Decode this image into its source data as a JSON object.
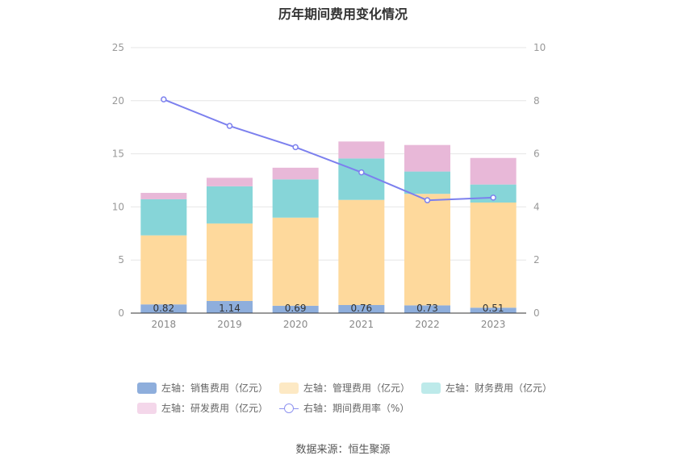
{
  "title": "历年期间费用变化情况",
  "source": "数据来源：恒生聚源",
  "legend": [
    {
      "label": "左轴：销售费用（亿元）",
      "color": "#8eaedc"
    },
    {
      "label": "左轴：管理费用（亿元）",
      "color": "#fde9c4"
    },
    {
      "label": "左轴：财务费用（亿元）",
      "color": "#bdeaea"
    },
    {
      "label": "左轴：研发费用（亿元）",
      "color": "#f4d7ea"
    },
    {
      "label": "右轴：期间费用率（%）",
      "color": "#8f93f0"
    }
  ],
  "chart_data": {
    "type": "bar",
    "stacked": true,
    "title": "历年期间费用变化情况",
    "categories": [
      "2018",
      "2019",
      "2020",
      "2021",
      "2022",
      "2023"
    ],
    "y_left": {
      "ylim": [
        0,
        25
      ],
      "ticks": [
        0,
        5,
        10,
        15,
        20,
        25
      ]
    },
    "y_right": {
      "ylim": [
        0,
        10
      ],
      "ticks": [
        0,
        2,
        4,
        6,
        8,
        10
      ]
    },
    "series": [
      {
        "name": "左轴：销售费用（亿元）",
        "axis": "left",
        "type": "bar",
        "color": "#8eaedc",
        "values": [
          0.82,
          1.14,
          0.69,
          0.76,
          0.73,
          0.51
        ],
        "labels": [
          "0.82",
          "1.14",
          "0.69",
          "0.76",
          "0.73",
          "0.51"
        ]
      },
      {
        "name": "左轴：管理费用（亿元）",
        "axis": "left",
        "type": "bar",
        "color": "#fed99c",
        "values": [
          6.5,
          7.3,
          8.3,
          9.9,
          10.5,
          9.9
        ]
      },
      {
        "name": "左轴：财务费用（亿元）",
        "axis": "left",
        "type": "bar",
        "color": "#86d5d8",
        "values": [
          3.4,
          3.5,
          3.6,
          3.9,
          2.1,
          1.7
        ]
      },
      {
        "name": "左轴：研发费用（亿元）",
        "axis": "left",
        "type": "bar",
        "color": "#e8b8d8",
        "values": [
          0.6,
          0.8,
          1.1,
          1.6,
          2.5,
          2.5
        ]
      },
      {
        "name": "右轴：期间费用率（%）",
        "axis": "right",
        "type": "line",
        "color": "#7c80ee",
        "values": [
          8.05,
          7.05,
          6.25,
          5.3,
          4.25,
          4.35
        ]
      }
    ],
    "grid": true,
    "legend_position": "bottom"
  }
}
